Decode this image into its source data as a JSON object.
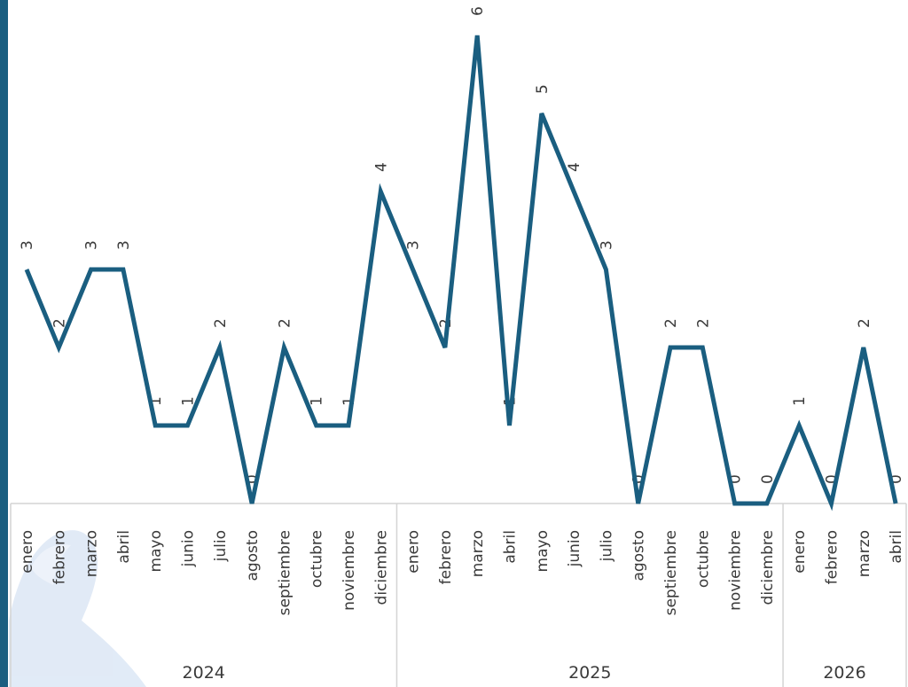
{
  "colors": {
    "line": "#1a5e80",
    "side_bar": "#1a5e80",
    "axis_border": "#d4d4d4",
    "watermark": "#c9daf0"
  },
  "watermark": "figure-silhouette-logo",
  "chart_data": {
    "type": "line",
    "title": "",
    "xlabel": "",
    "ylabel": "",
    "ylim": [
      0,
      6
    ],
    "grid": false,
    "legend": "none",
    "years": [
      {
        "label": "2024",
        "months": 12
      },
      {
        "label": "2025",
        "months": 12
      },
      {
        "label": "2026",
        "months": 4
      }
    ],
    "categories": [
      "enero",
      "febrero",
      "marzo",
      "abril",
      "mayo",
      "junio",
      "julio",
      "agosto",
      "septiembre",
      "octubre",
      "noviembre",
      "diciembre",
      "enero",
      "febrero",
      "marzo",
      "abril",
      "mayo",
      "junio",
      "julio",
      "agosto",
      "septiembre",
      "octubre",
      "noviembre",
      "diciembre",
      "enero",
      "febrero",
      "marzo",
      "abril"
    ],
    "series": [
      {
        "values": [
          3,
          2,
          3,
          3,
          1,
          1,
          2,
          0,
          2,
          1,
          1,
          4,
          3,
          2,
          6,
          1,
          5,
          4,
          3,
          0,
          2,
          2,
          0,
          0,
          1,
          0,
          2,
          0
        ]
      }
    ],
    "data_labels": true
  }
}
